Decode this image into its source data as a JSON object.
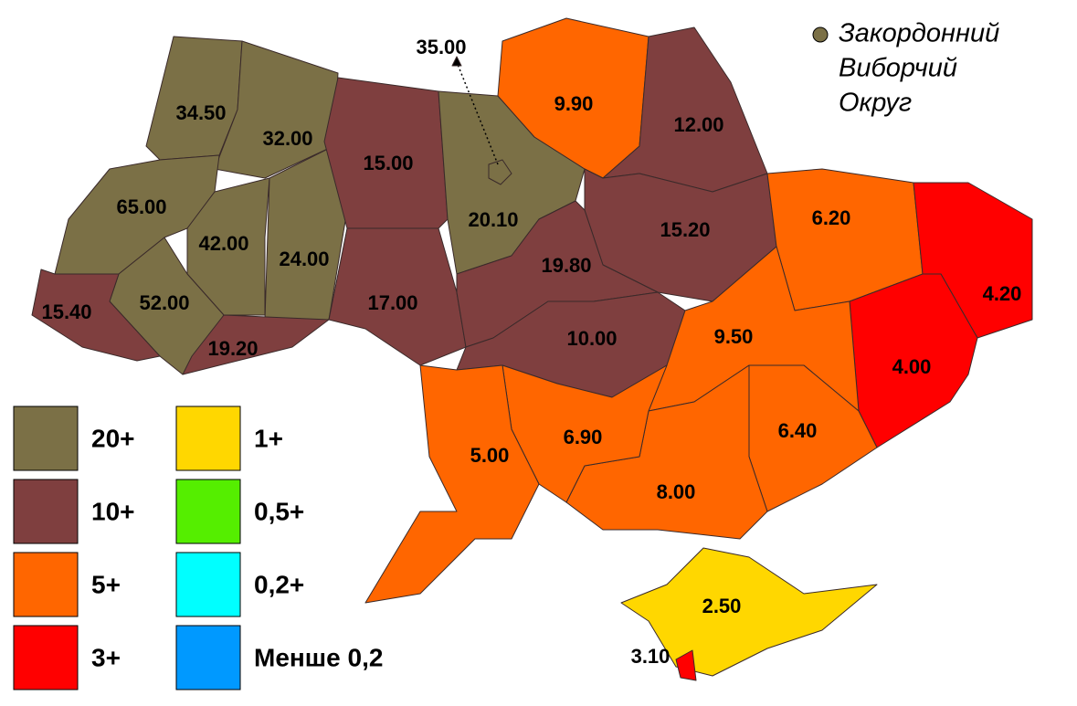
{
  "regions": [
    {
      "label": "34.50",
      "color": "#7b7046"
    },
    {
      "label": "32.00",
      "color": "#7b7046"
    },
    {
      "label": "65.00",
      "color": "#7b7046"
    },
    {
      "label": "42.00",
      "color": "#7b7046"
    },
    {
      "label": "24.00",
      "color": "#7b7046"
    },
    {
      "label": "52.00",
      "color": "#7b7046"
    },
    {
      "label": "15.40",
      "color": "#7f3f3f"
    },
    {
      "label": "19.20",
      "color": "#7f3f3f"
    },
    {
      "label": "15.00",
      "color": "#7f3f3f"
    },
    {
      "label": "17.00",
      "color": "#7f3f3f"
    },
    {
      "label": "20.10",
      "color": "#7b7046"
    },
    {
      "label": "9.90",
      "color": "#ff6600"
    },
    {
      "label": "12.00",
      "color": "#7f3f3f"
    },
    {
      "label": "15.20",
      "color": "#7f3f3f"
    },
    {
      "label": "19.80",
      "color": "#7f3f3f"
    },
    {
      "label": "10.00",
      "color": "#7f3f3f"
    },
    {
      "label": "6.20",
      "color": "#ff6600"
    },
    {
      "label": "4.20",
      "color": "#ff0000"
    },
    {
      "label": "4.00",
      "color": "#ff0000"
    },
    {
      "label": "9.50",
      "color": "#ff6600"
    },
    {
      "label": "6.40",
      "color": "#ff6600"
    },
    {
      "label": "8.00",
      "color": "#ff6600"
    },
    {
      "label": "6.90",
      "color": "#ff6600"
    },
    {
      "label": "5.00",
      "color": "#ff6600"
    },
    {
      "label": "2.50",
      "color": "#ffd700"
    },
    {
      "label": "3.10",
      "color": "#ff0000"
    },
    {
      "label": "35.00",
      "color": "#7b7046"
    }
  ],
  "legend": {
    "items": [
      {
        "label": "20+",
        "color": "#7b7046"
      },
      {
        "label": "10+",
        "color": "#7f3f3f"
      },
      {
        "label": "5+",
        "color": "#ff6600"
      },
      {
        "label": "3+",
        "color": "#ff0000"
      },
      {
        "label": "1+",
        "color": "#ffd700"
      },
      {
        "label": "0,5+",
        "color": "#55ee00"
      },
      {
        "label": "0,2+",
        "color": "#00ffff"
      },
      {
        "label": "Менше 0,2",
        "color": "#0099ff"
      }
    ]
  },
  "foreign_district": {
    "lines": [
      "Закордонний",
      "Виборчий",
      "Округ"
    ],
    "color": "#7b7046"
  }
}
